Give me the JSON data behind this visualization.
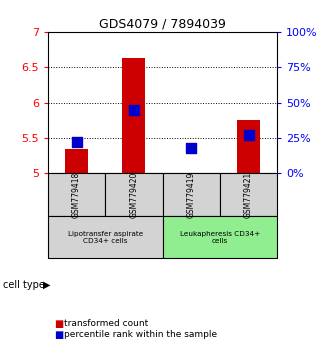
{
  "title": "GDS4079 / 7894039",
  "samples": [
    "GSM779418",
    "GSM779420",
    "GSM779419",
    "GSM779421"
  ],
  "transformed_counts": [
    5.35,
    6.63,
    5.01,
    5.75
  ],
  "percentile_ranks_pct": [
    22,
    45,
    18,
    27
  ],
  "ylim_left": [
    5.0,
    7.0
  ],
  "ylim_right": [
    0,
    100
  ],
  "yticks_left": [
    5.0,
    5.5,
    6.0,
    6.5,
    7.0
  ],
  "ytick_labels_left": [
    "5",
    "5.5",
    "6",
    "6.5",
    "7"
  ],
  "yticks_right": [
    0,
    25,
    50,
    75,
    100
  ],
  "ytick_labels_right": [
    "0%",
    "25%",
    "50%",
    "75%",
    "100%"
  ],
  "groups": [
    {
      "label": "Lipotransfer aspirate\nCD34+ cells",
      "samples": [
        0,
        1
      ],
      "color": "#d3d3d3"
    },
    {
      "label": "Leukapheresis CD34+\ncells",
      "samples": [
        2,
        3
      ],
      "color": "#90ee90"
    }
  ],
  "bar_color": "#cc0000",
  "dot_color": "#0000cc",
  "bar_width": 0.4,
  "dot_size": 45,
  "background_color": "#ffffff",
  "grid_color": "#000000",
  "cell_type_label": "cell type",
  "legend_red_label": "transformed count",
  "legend_blue_label": "percentile rank within the sample"
}
